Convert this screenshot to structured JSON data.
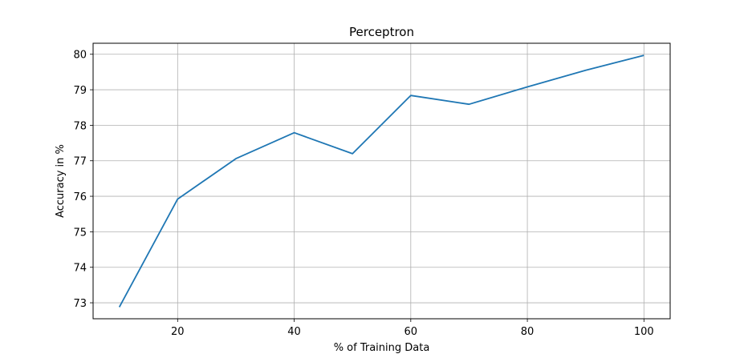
{
  "chart_data": {
    "type": "line",
    "title": "Perceptron",
    "xlabel": "% of Training Data",
    "ylabel": "Accuracy in %",
    "xlim": [
      5.5,
      104.5
    ],
    "ylim": [
      72.55,
      80.31
    ],
    "xticks": [
      20,
      40,
      60,
      80,
      100
    ],
    "yticks": [
      73,
      74,
      75,
      76,
      77,
      78,
      79,
      80
    ],
    "grid": true,
    "series": [
      {
        "color": "#1f77b4",
        "x": [
          10,
          20,
          30,
          40,
          50,
          60,
          70,
          80,
          90,
          100
        ],
        "y": [
          72.88,
          75.92,
          77.06,
          77.79,
          77.2,
          78.84,
          78.59,
          79.08,
          79.55,
          79.97
        ]
      }
    ]
  }
}
